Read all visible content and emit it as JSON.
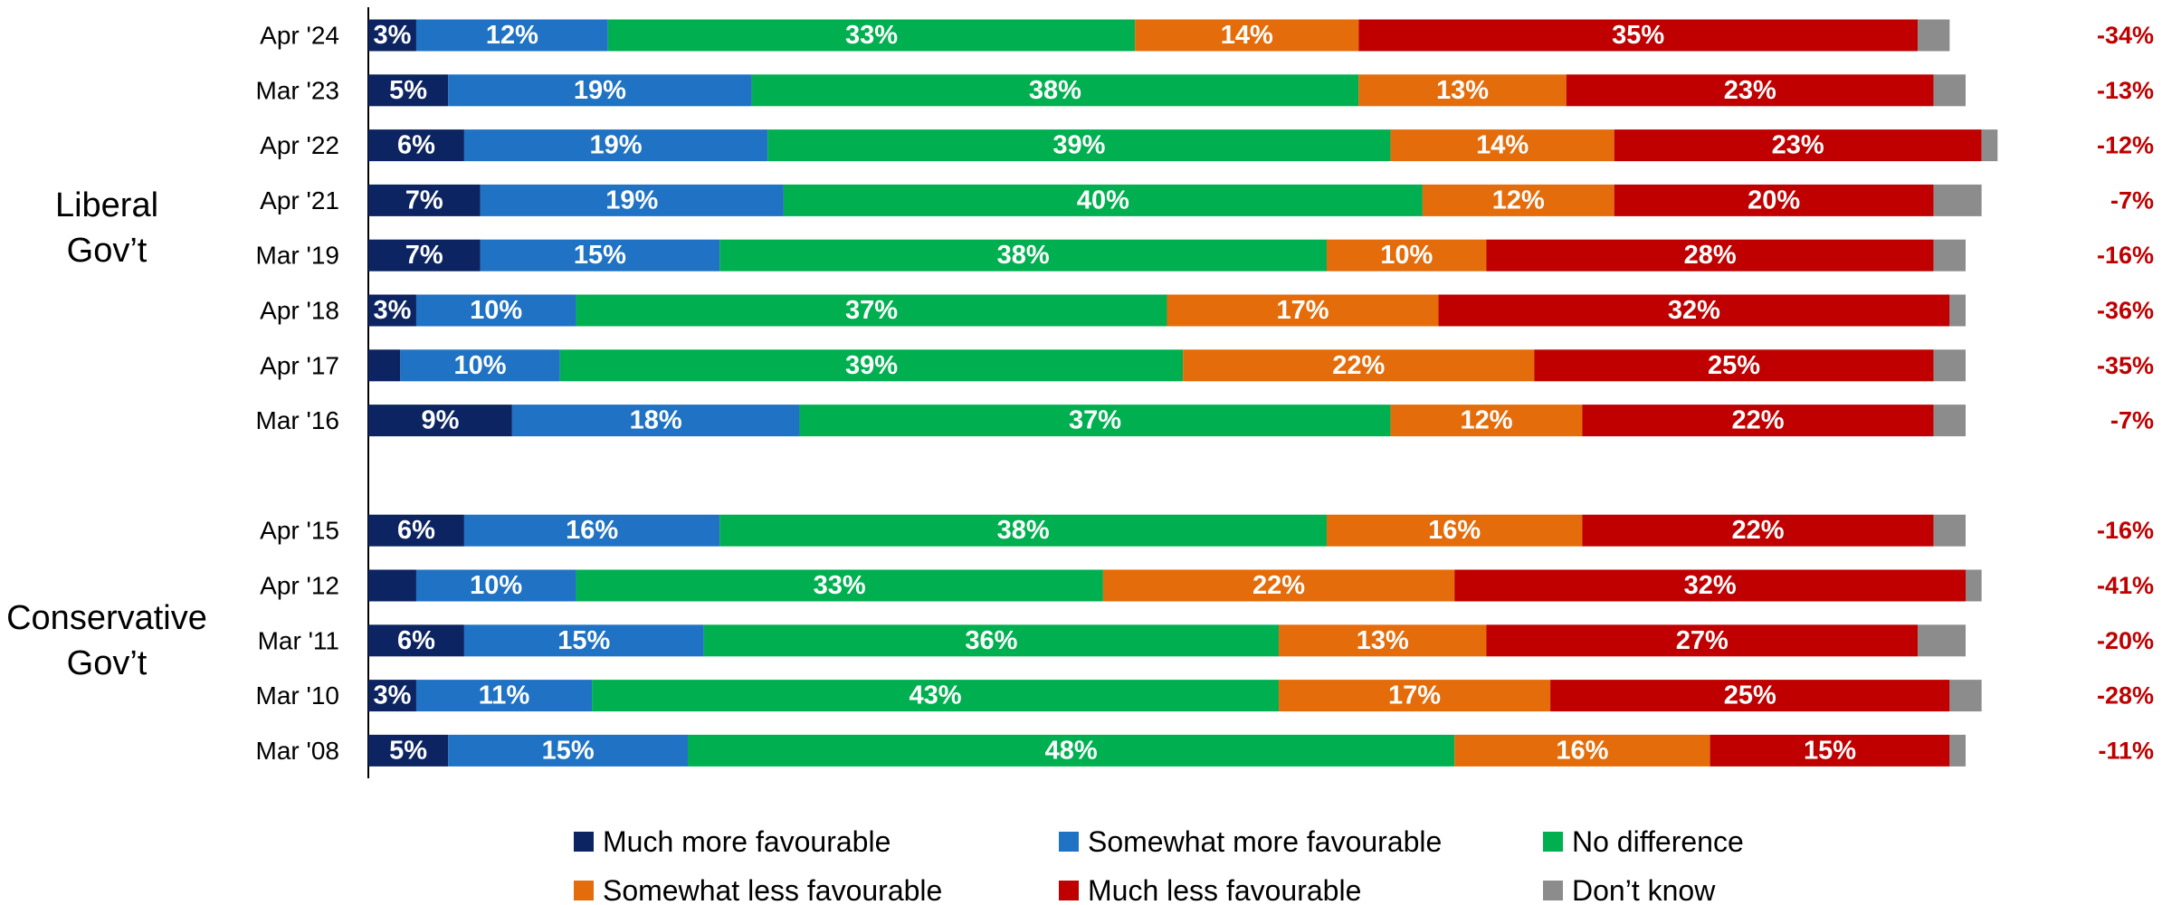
{
  "chart_data": {
    "type": "bar",
    "orientation": "horizontal",
    "stacked": true,
    "title": "",
    "xlabel": "",
    "ylabel": "",
    "xlim": [
      0,
      100
    ],
    "grid": false,
    "legend_position": "bottom",
    "groups": [
      {
        "label_lines": [
          "Liberal",
          "Gov’t"
        ],
        "categories": [
          "Apr '24",
          "Mar '23",
          "Apr '22",
          "Apr '21",
          "Mar '19",
          "Apr '18",
          "Apr '17",
          "Mar '16"
        ]
      },
      {
        "label_lines": [
          "Conservative",
          "Gov’t"
        ],
        "categories": [
          "Apr '15",
          "Apr '12",
          "Mar '11",
          "Mar '10",
          "Mar '08"
        ]
      }
    ],
    "categories": [
      "Apr '24",
      "Mar '23",
      "Apr '22",
      "Apr '21",
      "Mar '19",
      "Apr '18",
      "Apr '17",
      "Mar '16",
      "Apr '15",
      "Apr '12",
      "Mar '11",
      "Mar '10",
      "Mar '08"
    ],
    "series": [
      {
        "name": "Much more favourable",
        "color": "#0c2461",
        "values": [
          3,
          5,
          6,
          7,
          7,
          3,
          2,
          9,
          6,
          3,
          6,
          3,
          5
        ]
      },
      {
        "name": "Somewhat more favourable",
        "color": "#1f72c4",
        "values": [
          12,
          19,
          19,
          19,
          15,
          10,
          10,
          18,
          16,
          10,
          15,
          11,
          15
        ]
      },
      {
        "name": "No difference",
        "color": "#00b050",
        "values": [
          33,
          38,
          39,
          40,
          38,
          37,
          39,
          37,
          38,
          33,
          36,
          43,
          48
        ]
      },
      {
        "name": "Somewhat less favourable",
        "color": "#e46c0a",
        "values": [
          14,
          13,
          14,
          12,
          10,
          17,
          22,
          12,
          16,
          22,
          13,
          17,
          16
        ]
      },
      {
        "name": "Much less favourable",
        "color": "#c00000",
        "values": [
          35,
          23,
          23,
          20,
          28,
          32,
          25,
          22,
          22,
          32,
          27,
          25,
          15
        ]
      },
      {
        "name": "Don’t know",
        "color": "#8c8c8c",
        "values": [
          2,
          2,
          1,
          3,
          2,
          1,
          2,
          2,
          2,
          1,
          3,
          2,
          1
        ]
      }
    ],
    "hidden_labels": [
      [
        false,
        false,
        false,
        false,
        false,
        false
      ],
      [
        false,
        false,
        false,
        false,
        false,
        false
      ],
      [
        false,
        false,
        false,
        false,
        false,
        false
      ],
      [
        false,
        false,
        false,
        false,
        false,
        false
      ],
      [
        false,
        false,
        false,
        false,
        false,
        false
      ],
      [
        false,
        false,
        false,
        false,
        false,
        false
      ],
      [
        true,
        false,
        false,
        false,
        false,
        false
      ],
      [
        false,
        false,
        false,
        false,
        false,
        false
      ],
      [
        false,
        false,
        false,
        false,
        false,
        false
      ],
      [
        true,
        false,
        false,
        false,
        false,
        false
      ],
      [
        false,
        false,
        false,
        false,
        false,
        false
      ],
      [
        false,
        false,
        false,
        false,
        false,
        false
      ],
      [
        false,
        false,
        false,
        false,
        false,
        false
      ]
    ],
    "net_values": [
      "-34%",
      "-13%",
      "-12%",
      "-7%",
      "-16%",
      "-36%",
      "-35%",
      "-7%",
      "-16%",
      "-41%",
      "-20%",
      "-28%",
      "-11%"
    ],
    "net_color": "#c00000"
  }
}
